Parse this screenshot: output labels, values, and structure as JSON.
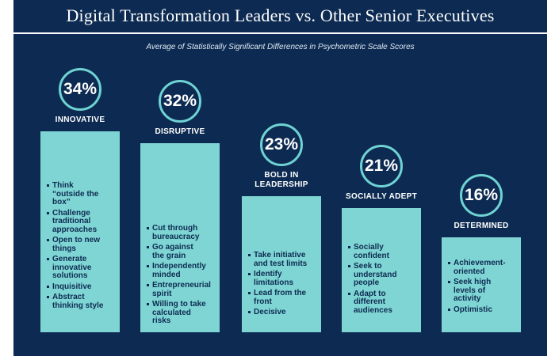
{
  "header": {
    "title": "Digital Transformation Leaders vs. Other Senior Executives",
    "subtitle": "Average of Statistically Significant Differences in Psychometric Scale Scores"
  },
  "colors": {
    "background": "#0d2b52",
    "bar": "#7fd5d3",
    "circle_border": "#6fd3d3",
    "bullet_text": "#0d2b52"
  },
  "chart_data": {
    "type": "bar",
    "categories": [
      "INNOVATIVE",
      "DISRUPTIVE",
      "BOLD IN LEADERSHIP",
      "SOCIALLY ADEPT",
      "DETERMINED"
    ],
    "values": [
      34,
      32,
      23,
      21,
      16
    ],
    "value_labels": [
      "34%",
      "32%",
      "23%",
      "21%",
      "16%"
    ],
    "title": "Digital Transformation Leaders vs. Other Senior Executives",
    "subtitle": "Average of Statistically Significant Differences in Psychometric Scale Scores",
    "bullets": [
      [
        "Think “outside the box”",
        "Challenge traditional approaches",
        "Open to new things",
        "Generate innovative solutions",
        "Inquisitive",
        "Abstract thinking style"
      ],
      [
        "Cut through bureaucracy",
        "Go against the grain",
        "Independently minded",
        "Entrepreneurial spirit",
        "Willing to take calculated risks"
      ],
      [
        "Take initiative and test limits",
        "Identify limitations",
        "Lead from the front",
        "Decisive"
      ],
      [
        "Socially confident",
        "Seek to understand people",
        "Adapt to different audiences"
      ],
      [
        "Achievement-oriented",
        "Seek high levels of activity",
        "Optimistic"
      ]
    ]
  }
}
